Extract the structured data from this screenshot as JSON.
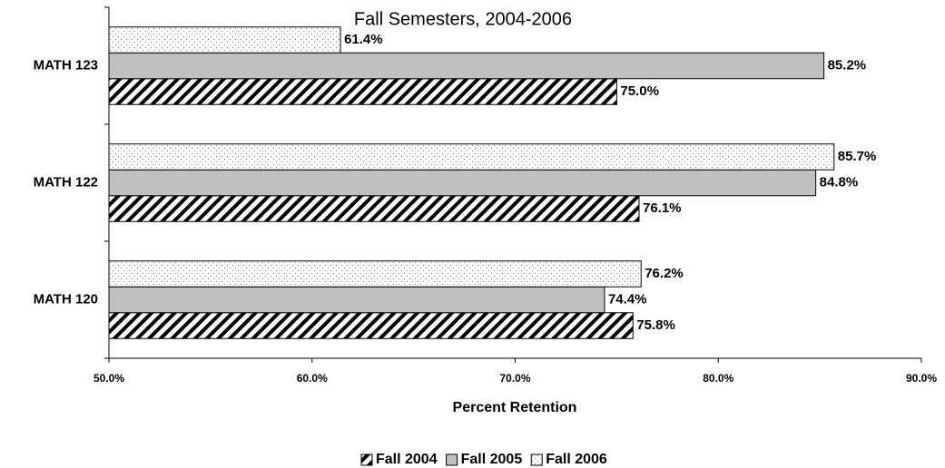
{
  "chart_data": {
    "type": "hbar",
    "subtitle": "Fall Semesters, 2004-2006",
    "x_label": "Percent Retention",
    "categories": [
      "MATH 120",
      "MATH 122",
      "MATH 123"
    ],
    "series": [
      {
        "name": "Fall 2004",
        "color": "#000000",
        "pattern": "diagonal",
        "values": [
          75.8,
          76.1,
          75.0
        ],
        "value_labels": [
          "75.8%",
          "76.1%",
          "75.0%"
        ]
      },
      {
        "name": "Fall 2005",
        "color": "#c0c0c0",
        "pattern": "solid",
        "values": [
          74.4,
          84.8,
          85.2
        ],
        "value_labels": [
          "74.4%",
          "84.8%",
          "85.2%"
        ]
      },
      {
        "name": "Fall 2006",
        "color": "#808080",
        "pattern": "dots",
        "values": [
          76.2,
          85.7,
          61.4
        ],
        "value_labels": [
          "76.2%",
          "85.7%",
          "61.4%"
        ]
      }
    ],
    "xlim": [
      50,
      90
    ],
    "xticks": [
      {
        "value": 50,
        "label": "50.0%"
      },
      {
        "value": 60,
        "label": "60.0%"
      },
      {
        "value": 70,
        "label": "70.0%"
      },
      {
        "value": 80,
        "label": "80.0%"
      },
      {
        "value": 90,
        "label": "90.0%"
      }
    ],
    "legend": "bottom"
  }
}
